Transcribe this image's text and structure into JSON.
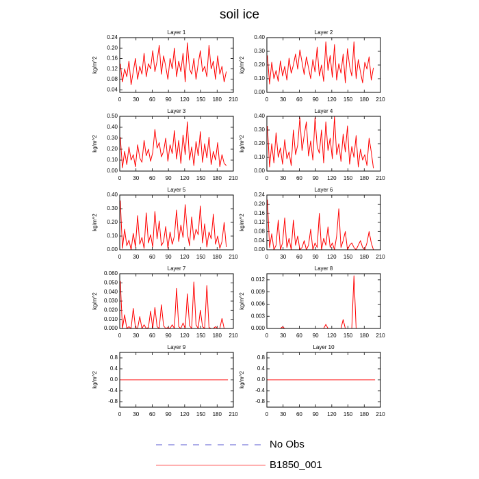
{
  "title": "soil ice",
  "legend": [
    {
      "name": "No Obs",
      "color": "#5a5ad0",
      "dash": true
    },
    {
      "name": "B1850_001",
      "color": "#ff6060",
      "dash": false
    }
  ],
  "chart_data": [
    {
      "type": "line",
      "title": "Layer 1",
      "ylabel": "kg/m^2",
      "color": "#ff0000",
      "x": [
        1,
        5,
        9,
        13,
        17,
        21,
        25,
        29,
        33,
        37,
        41,
        45,
        49,
        53,
        57,
        61,
        65,
        69,
        73,
        77,
        81,
        85,
        89,
        93,
        97,
        101,
        105,
        109,
        113,
        117,
        121,
        125,
        129,
        133,
        137,
        141,
        145,
        149,
        153,
        157,
        161,
        165,
        169,
        173,
        177,
        181,
        185,
        189,
        193,
        197
      ],
      "values": [
        0.14,
        0.07,
        0.12,
        0.09,
        0.15,
        0.06,
        0.11,
        0.16,
        0.08,
        0.13,
        0.1,
        0.18,
        0.09,
        0.14,
        0.12,
        0.19,
        0.11,
        0.15,
        0.21,
        0.1,
        0.17,
        0.13,
        0.08,
        0.16,
        0.12,
        0.2,
        0.09,
        0.15,
        0.11,
        0.18,
        0.07,
        0.22,
        0.12,
        0.1,
        0.16,
        0.08,
        0.14,
        0.19,
        0.11,
        0.13,
        0.09,
        0.21,
        0.12,
        0.15,
        0.08,
        0.17,
        0.1,
        0.13,
        0.07,
        0.11
      ],
      "xlim": [
        0,
        210
      ],
      "xticks": [
        0,
        30,
        60,
        90,
        120,
        150,
        180,
        210
      ],
      "ylim": [
        0.03,
        0.24
      ],
      "yticks": [
        {
          "value": 0.04,
          "label": "0.04"
        },
        {
          "value": 0.08,
          "label": "0.08"
        },
        {
          "value": 0.12,
          "label": "0.12"
        },
        {
          "value": 0.16,
          "label": "0.16"
        },
        {
          "value": 0.2,
          "label": "0.20"
        },
        {
          "value": 0.24,
          "label": "0.24"
        }
      ]
    },
    {
      "type": "line",
      "title": "Layer 2",
      "ylabel": "kg/m^2",
      "color": "#ff0000",
      "x": [
        1,
        5,
        9,
        13,
        17,
        21,
        25,
        29,
        33,
        37,
        41,
        45,
        49,
        53,
        57,
        61,
        65,
        69,
        73,
        77,
        81,
        85,
        89,
        93,
        97,
        101,
        105,
        109,
        113,
        117,
        121,
        125,
        129,
        133,
        137,
        141,
        145,
        149,
        153,
        157,
        161,
        165,
        169,
        173,
        177,
        181,
        185,
        189,
        193,
        197
      ],
      "values": [
        0.27,
        0.06,
        0.22,
        0.1,
        0.16,
        0.08,
        0.23,
        0.12,
        0.19,
        0.09,
        0.25,
        0.14,
        0.2,
        0.28,
        0.17,
        0.31,
        0.22,
        0.13,
        0.26,
        0.18,
        0.1,
        0.24,
        0.15,
        0.33,
        0.12,
        0.2,
        0.08,
        0.37,
        0.16,
        0.27,
        0.11,
        0.35,
        0.09,
        0.21,
        0.14,
        0.28,
        0.07,
        0.32,
        0.19,
        0.12,
        0.37,
        0.1,
        0.24,
        0.15,
        0.07,
        0.22,
        0.17,
        0.26,
        0.09,
        0.18
      ],
      "xlim": [
        0,
        210
      ],
      "xticks": [
        0,
        30,
        60,
        90,
        120,
        150,
        180,
        210
      ],
      "ylim": [
        0,
        0.4
      ],
      "yticks": [
        {
          "value": 0,
          "label": "0.00"
        },
        {
          "value": 0.1,
          "label": "0.10"
        },
        {
          "value": 0.2,
          "label": "0.20"
        },
        {
          "value": 0.3,
          "label": "0.30"
        },
        {
          "value": 0.4,
          "label": "0.40"
        }
      ]
    },
    {
      "type": "line",
      "title": "Layer 3",
      "ylabel": "kg/m^2",
      "color": "#ff0000",
      "x": [
        1,
        5,
        9,
        13,
        17,
        21,
        25,
        29,
        33,
        37,
        41,
        45,
        49,
        53,
        57,
        61,
        65,
        69,
        73,
        77,
        81,
        85,
        89,
        93,
        97,
        101,
        105,
        109,
        113,
        117,
        121,
        125,
        129,
        133,
        137,
        141,
        145,
        149,
        153,
        157,
        161,
        165,
        169,
        173,
        177,
        181,
        185,
        189,
        193,
        197
      ],
      "values": [
        0.31,
        0.03,
        0.18,
        0.06,
        0.22,
        0.1,
        0.15,
        0.04,
        0.24,
        0.12,
        0.08,
        0.28,
        0.14,
        0.2,
        0.09,
        0.17,
        0.38,
        0.21,
        0.26,
        0.13,
        0.18,
        0.3,
        0.09,
        0.24,
        0.16,
        0.37,
        0.11,
        0.28,
        0.07,
        0.33,
        0.15,
        0.45,
        0.1,
        0.22,
        0.05,
        0.27,
        0.14,
        0.36,
        0.08,
        0.25,
        0.12,
        0.31,
        0.06,
        0.18,
        0.1,
        0.26,
        0.04,
        0.15,
        0.07,
        0.05
      ],
      "xlim": [
        0,
        210
      ],
      "xticks": [
        0,
        30,
        60,
        90,
        120,
        150,
        180,
        210
      ],
      "ylim": [
        0,
        0.5
      ],
      "yticks": [
        {
          "value": 0,
          "label": "0.00"
        },
        {
          "value": 0.1,
          "label": "0.10"
        },
        {
          "value": 0.2,
          "label": "0.20"
        },
        {
          "value": 0.3,
          "label": "0.30"
        },
        {
          "value": 0.4,
          "label": "0.40"
        },
        {
          "value": 0.5,
          "label": "0.50"
        }
      ]
    },
    {
      "type": "line",
      "title": "Layer 4",
      "ylabel": "kg/m^2",
      "color": "#ff0000",
      "x": [
        1,
        5,
        9,
        13,
        17,
        21,
        25,
        29,
        33,
        37,
        41,
        45,
        49,
        53,
        57,
        61,
        65,
        69,
        73,
        77,
        81,
        85,
        89,
        93,
        97,
        101,
        105,
        109,
        113,
        117,
        121,
        125,
        129,
        133,
        137,
        141,
        145,
        149,
        153,
        157,
        161,
        165,
        169,
        173,
        177,
        181,
        185,
        189,
        193,
        197
      ],
      "values": [
        0.33,
        0.03,
        0.2,
        0.06,
        0.28,
        0.1,
        0.17,
        0.05,
        0.23,
        0.09,
        0.14,
        0.04,
        0.3,
        0.12,
        0.19,
        0.39,
        0.15,
        0.26,
        0.36,
        0.11,
        0.22,
        0.08,
        0.39,
        0.18,
        0.13,
        0.3,
        0.06,
        0.36,
        0.15,
        0.24,
        0.09,
        0.4,
        0.12,
        0.2,
        0.07,
        0.27,
        0.14,
        0.33,
        0.05,
        0.18,
        0.1,
        0.26,
        0.03,
        0.16,
        0.08,
        0.12,
        0.04,
        0.24,
        0.14,
        0.02
      ],
      "xlim": [
        0,
        210
      ],
      "xticks": [
        0,
        30,
        60,
        90,
        120,
        150,
        180,
        210
      ],
      "ylim": [
        0,
        0.4
      ],
      "yticks": [
        {
          "value": 0,
          "label": "0.00"
        },
        {
          "value": 0.1,
          "label": "0.10"
        },
        {
          "value": 0.2,
          "label": "0.20"
        },
        {
          "value": 0.3,
          "label": "0.30"
        },
        {
          "value": 0.4,
          "label": "0.40"
        }
      ]
    },
    {
      "type": "line",
      "title": "Layer 5",
      "ylabel": "kg/m^2",
      "color": "#ff0000",
      "x": [
        1,
        5,
        9,
        13,
        17,
        21,
        25,
        29,
        33,
        37,
        41,
        45,
        49,
        53,
        57,
        61,
        65,
        69,
        73,
        77,
        81,
        85,
        89,
        93,
        97,
        101,
        105,
        109,
        113,
        117,
        121,
        125,
        129,
        133,
        137,
        141,
        145,
        149,
        153,
        157,
        161,
        165,
        169,
        173,
        177,
        181,
        185,
        189,
        193,
        197
      ],
      "values": [
        0.36,
        0.01,
        0.15,
        0.03,
        0.07,
        0.0,
        0.12,
        0.02,
        0.25,
        0.04,
        0.09,
        0.01,
        0.27,
        0.05,
        0.11,
        0.02,
        0.28,
        0.08,
        0.21,
        0.03,
        0.06,
        0.17,
        0.01,
        0.13,
        0.04,
        0.1,
        0.29,
        0.06,
        0.18,
        0.09,
        0.33,
        0.12,
        0.03,
        0.24,
        0.07,
        0.15,
        0.11,
        0.32,
        0.05,
        0.19,
        0.02,
        0.13,
        0.08,
        0.26,
        0.04,
        0.1,
        0.01,
        0.06,
        0.2,
        0.02
      ],
      "xlim": [
        0,
        210
      ],
      "xticks": [
        0,
        30,
        60,
        90,
        120,
        150,
        180,
        210
      ],
      "ylim": [
        0,
        0.4
      ],
      "yticks": [
        {
          "value": 0,
          "label": "0.00"
        },
        {
          "value": 0.1,
          "label": "0.10"
        },
        {
          "value": 0.2,
          "label": "0.20"
        },
        {
          "value": 0.3,
          "label": "0.30"
        },
        {
          "value": 0.4,
          "label": "0.40"
        }
      ]
    },
    {
      "type": "line",
      "title": "Layer 6",
      "ylabel": "kg/m^2",
      "color": "#ff0000",
      "x": [
        1,
        5,
        9,
        13,
        17,
        21,
        25,
        29,
        33,
        37,
        41,
        45,
        49,
        53,
        57,
        61,
        65,
        69,
        73,
        77,
        81,
        85,
        89,
        93,
        97,
        101,
        105,
        109,
        113,
        117,
        121,
        125,
        129,
        133,
        137,
        141,
        145,
        149,
        153,
        157,
        161,
        165,
        169,
        173,
        177,
        181,
        185,
        189,
        193,
        197
      ],
      "values": [
        0.22,
        0.01,
        0.07,
        0.0,
        0.02,
        0.13,
        0.0,
        0.03,
        0.14,
        0.01,
        0.05,
        0.0,
        0.13,
        0.02,
        0.06,
        0.0,
        0.01,
        0.04,
        0.0,
        0.02,
        0.09,
        0.0,
        0.03,
        0.01,
        0.16,
        0.0,
        0.05,
        0.02,
        0.1,
        0.01,
        0.03,
        0.0,
        0.06,
        0.18,
        0.01,
        0.04,
        0.08,
        0.0,
        0.02,
        0.03,
        0.01,
        0.0,
        0.02,
        0.04,
        0.01,
        0.0,
        0.03,
        0.08,
        0.03,
        0.0
      ],
      "xlim": [
        0,
        210
      ],
      "xticks": [
        0,
        30,
        60,
        90,
        120,
        150,
        180,
        210
      ],
      "ylim": [
        0,
        0.24
      ],
      "yticks": [
        {
          "value": 0,
          "label": "0.00"
        },
        {
          "value": 0.04,
          "label": "0.04"
        },
        {
          "value": 0.08,
          "label": "0.08"
        },
        {
          "value": 0.12,
          "label": "0.12"
        },
        {
          "value": 0.16,
          "label": "0.16"
        },
        {
          "value": 0.2,
          "label": "0.20"
        },
        {
          "value": 0.24,
          "label": "0.24"
        }
      ]
    },
    {
      "type": "line",
      "title": "Layer 7",
      "ylabel": "kg/m^2",
      "color": "#ff0000",
      "x": [
        1,
        5,
        9,
        13,
        17,
        21,
        25,
        29,
        33,
        37,
        41,
        45,
        49,
        53,
        57,
        61,
        65,
        69,
        73,
        77,
        81,
        85,
        89,
        93,
        97,
        101,
        105,
        109,
        113,
        117,
        121,
        125,
        129,
        133,
        137,
        141,
        145,
        149,
        153,
        157,
        161,
        165,
        169,
        173,
        177,
        181,
        185,
        189,
        193,
        197
      ],
      "values": [
        0.052,
        0,
        0.015,
        0,
        0.002,
        0,
        0.022,
        0.001,
        0,
        0.013,
        0,
        0.004,
        0,
        0.001,
        0.019,
        0,
        0.023,
        0.002,
        0,
        0.026,
        0.003,
        0,
        0.001,
        0,
        0.004,
        0,
        0.044,
        0.002,
        0,
        0.006,
        0,
        0.038,
        0.003,
        0,
        0.051,
        0.004,
        0,
        0.02,
        0.002,
        0,
        0.047,
        0.001,
        0,
        0,
        0.002,
        0,
        0,
        0.011,
        0,
        0
      ],
      "xlim": [
        0,
        210
      ],
      "xticks": [
        0,
        30,
        60,
        90,
        120,
        150,
        180,
        210
      ],
      "ylim": [
        0,
        0.06
      ],
      "yticks": [
        {
          "value": 0,
          "label": "0.000"
        },
        {
          "value": 0.01,
          "label": "0.010"
        },
        {
          "value": 0.02,
          "label": "0.020"
        },
        {
          "value": 0.03,
          "label": "0.030"
        },
        {
          "value": 0.04,
          "label": "0.040"
        },
        {
          "value": 0.05,
          "label": "0.050"
        },
        {
          "value": 0.06,
          "label": "0.060"
        }
      ]
    },
    {
      "type": "line",
      "title": "Layer 8",
      "ylabel": "kg/m^2",
      "color": "#ff0000",
      "x": [
        1,
        5,
        9,
        13,
        17,
        21,
        25,
        29,
        33,
        37,
        41,
        45,
        49,
        53,
        57,
        61,
        65,
        69,
        73,
        77,
        81,
        85,
        89,
        93,
        97,
        101,
        105,
        109,
        113,
        117,
        121,
        125,
        129,
        133,
        137,
        141,
        145,
        149,
        153,
        157,
        161,
        165,
        169,
        173,
        177,
        181,
        185,
        189,
        193,
        197
      ],
      "values": [
        0,
        0,
        0,
        0,
        0,
        0,
        0,
        0.0004,
        0,
        0,
        0,
        0,
        0,
        0,
        0,
        0,
        0,
        0,
        0,
        0,
        0,
        0,
        0,
        0,
        0,
        0,
        0,
        0.001,
        0,
        0,
        0,
        0,
        0,
        0,
        0,
        0.0022,
        0,
        0,
        0,
        0,
        0.013,
        0,
        0,
        0,
        0,
        0,
        0,
        0,
        0,
        0
      ],
      "xlim": [
        0,
        210
      ],
      "xticks": [
        0,
        30,
        60,
        90,
        120,
        150,
        180,
        210
      ],
      "ylim": [
        0,
        0.0135
      ],
      "yticks": [
        {
          "value": 0,
          "label": "0.000"
        },
        {
          "value": 0.003,
          "label": "0.003"
        },
        {
          "value": 0.006,
          "label": "0.006"
        },
        {
          "value": 0.009,
          "label": "0.009"
        },
        {
          "value": 0.012,
          "label": "0.012"
        }
      ]
    },
    {
      "type": "line",
      "title": "Layer 9",
      "ylabel": "kg/m^2",
      "color": "#ff0000",
      "x": [
        1,
        200
      ],
      "values": [
        0,
        0
      ],
      "xlim": [
        0,
        210
      ],
      "xticks": [
        0,
        30,
        60,
        90,
        120,
        150,
        180,
        210
      ],
      "ylim": [
        -1,
        1
      ],
      "yticks": [
        -0.8,
        -0.4,
        {
          "value": 0,
          "label": "0.0"
        },
        0.4,
        0.8
      ]
    },
    {
      "type": "line",
      "title": "Layer 10",
      "ylabel": "kg/m^2",
      "color": "#ff0000",
      "x": [
        1,
        200
      ],
      "values": [
        0,
        0
      ],
      "xlim": [
        0,
        210
      ],
      "xticks": [
        0,
        30,
        60,
        90,
        120,
        150,
        180,
        210
      ],
      "ylim": [
        -1,
        1
      ],
      "yticks": [
        -0.8,
        -0.4,
        {
          "value": 0,
          "label": "0.0"
        },
        0.4,
        0.8
      ]
    }
  ]
}
